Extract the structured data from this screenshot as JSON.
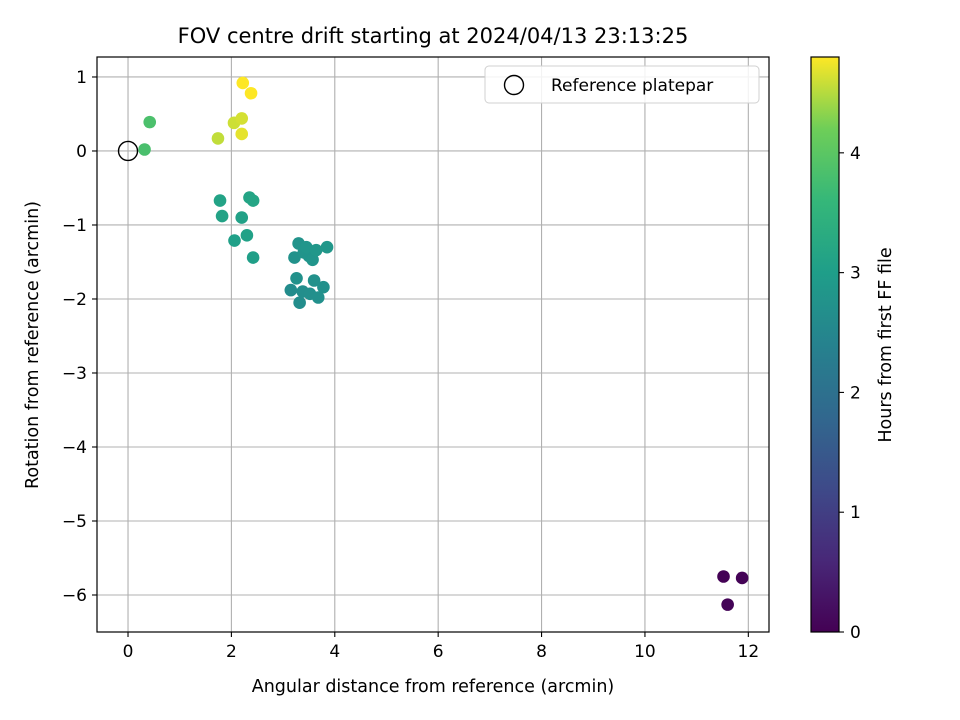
{
  "chart_data": {
    "type": "scatter",
    "title": "FOV centre drift starting at 2024/04/13 23:13:25",
    "xlabel": "Angular distance from reference (arcmin)",
    "ylabel": "Rotation from reference (arcmin)",
    "xlim": [
      -0.6,
      12.4
    ],
    "ylim": [
      -6.5,
      1.27
    ],
    "xticks": [
      0,
      2,
      4,
      6,
      8,
      10,
      12
    ],
    "yticks": [
      1,
      0,
      -1,
      -2,
      -3,
      -4,
      -5,
      -6
    ],
    "grid": true,
    "legend": {
      "placement": "top-right",
      "entries": [
        "Reference platepar"
      ]
    },
    "reference": {
      "x": 0,
      "y": 0
    },
    "colorbar": {
      "label": "Hours from first FF file",
      "colormap": "viridis",
      "range": [
        0,
        4.8
      ],
      "ticks": [
        0,
        1,
        2,
        3,
        4
      ]
    },
    "points": [
      {
        "x": 11.52,
        "y": -5.75,
        "c": 0.02
      },
      {
        "x": 11.88,
        "y": -5.77,
        "c": 0.03
      },
      {
        "x": 11.6,
        "y": -6.13,
        "c": 0.05
      },
      {
        "x": 3.15,
        "y": -1.88,
        "c": 2.62
      },
      {
        "x": 3.32,
        "y": -2.05,
        "c": 2.64
      },
      {
        "x": 3.38,
        "y": -1.9,
        "c": 2.66
      },
      {
        "x": 3.52,
        "y": -1.93,
        "c": 2.68
      },
      {
        "x": 3.68,
        "y": -1.98,
        "c": 2.7
      },
      {
        "x": 3.78,
        "y": -1.84,
        "c": 2.71
      },
      {
        "x": 3.6,
        "y": -1.75,
        "c": 2.72
      },
      {
        "x": 3.26,
        "y": -1.72,
        "c": 2.73
      },
      {
        "x": 3.22,
        "y": -1.44,
        "c": 2.74
      },
      {
        "x": 3.3,
        "y": -1.25,
        "c": 2.76
      },
      {
        "x": 3.4,
        "y": -1.37,
        "c": 2.78
      },
      {
        "x": 3.5,
        "y": -1.42,
        "c": 2.79
      },
      {
        "x": 3.57,
        "y": -1.47,
        "c": 2.8
      },
      {
        "x": 3.45,
        "y": -1.3,
        "c": 2.82
      },
      {
        "x": 3.64,
        "y": -1.34,
        "c": 2.84
      },
      {
        "x": 3.85,
        "y": -1.3,
        "c": 2.86
      },
      {
        "x": 2.42,
        "y": -1.44,
        "c": 3.02
      },
      {
        "x": 2.06,
        "y": -1.21,
        "c": 3.04
      },
      {
        "x": 2.3,
        "y": -1.14,
        "c": 3.06
      },
      {
        "x": 2.2,
        "y": -0.9,
        "c": 3.08
      },
      {
        "x": 1.82,
        "y": -0.88,
        "c": 3.1
      },
      {
        "x": 1.78,
        "y": -0.67,
        "c": 3.12
      },
      {
        "x": 2.35,
        "y": -0.63,
        "c": 3.14
      },
      {
        "x": 2.42,
        "y": -0.67,
        "c": 3.16
      },
      {
        "x": 0.32,
        "y": 0.02,
        "c": 3.82
      },
      {
        "x": 0.42,
        "y": 0.39,
        "c": 3.84
      },
      {
        "x": 1.74,
        "y": 0.17,
        "c": 4.55
      },
      {
        "x": 2.05,
        "y": 0.38,
        "c": 4.6
      },
      {
        "x": 2.2,
        "y": 0.44,
        "c": 4.63
      },
      {
        "x": 2.2,
        "y": 0.23,
        "c": 4.7
      },
      {
        "x": 2.22,
        "y": 0.92,
        "c": 4.82
      },
      {
        "x": 2.38,
        "y": 0.78,
        "c": 4.84
      }
    ]
  }
}
